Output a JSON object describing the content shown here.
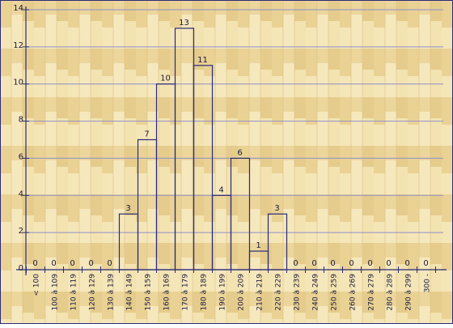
{
  "colors": {
    "background": "#f1dfa8",
    "plank_dark": "#e2c98a",
    "plank_light": "#f7ebc2",
    "axis": "#2b2b7a",
    "grid": "#8f8fc8",
    "bar_stroke": "#2b2b7a",
    "text": "#1a1a3a"
  },
  "chart_data": {
    "type": "bar",
    "title": "",
    "xlabel": "",
    "ylabel": "",
    "categories": [
      "< 100",
      "100 à 109",
      "110 à 119",
      "120 à 129",
      "130 à 139",
      "140 à 149",
      "150 à 159",
      "160 à 169",
      "170 à 179",
      "180 à 189",
      "190 à 199",
      "200 à 209",
      "210 à 219",
      "220 à 229",
      "230 à 239",
      "240 à 249",
      "250 à 259",
      "260 à 269",
      "270 à 279",
      "280 à 289",
      "290 à 299",
      "300 -"
    ],
    "values": [
      0,
      0,
      0,
      0,
      0,
      3,
      7,
      10,
      13,
      11,
      4,
      6,
      1,
      3,
      0,
      0,
      0,
      0,
      0,
      0,
      0,
      0
    ],
    "data_labels": [
      "0",
      "0",
      "0",
      "0",
      "0",
      "3",
      "7",
      "10",
      "13",
      "11",
      "4",
      "6",
      "1",
      "3",
      "0",
      "0",
      "0",
      "0",
      "0",
      "0",
      "0",
      "0"
    ],
    "ylim": [
      0,
      14
    ],
    "yticks": [
      0,
      2,
      4,
      6,
      8,
      10,
      12,
      14
    ],
    "ytick_labels": [
      "0",
      "2",
      "4",
      "6",
      "8",
      "10",
      "12",
      "14"
    ],
    "grid": true,
    "bar_fill": "none",
    "legend": "none"
  }
}
